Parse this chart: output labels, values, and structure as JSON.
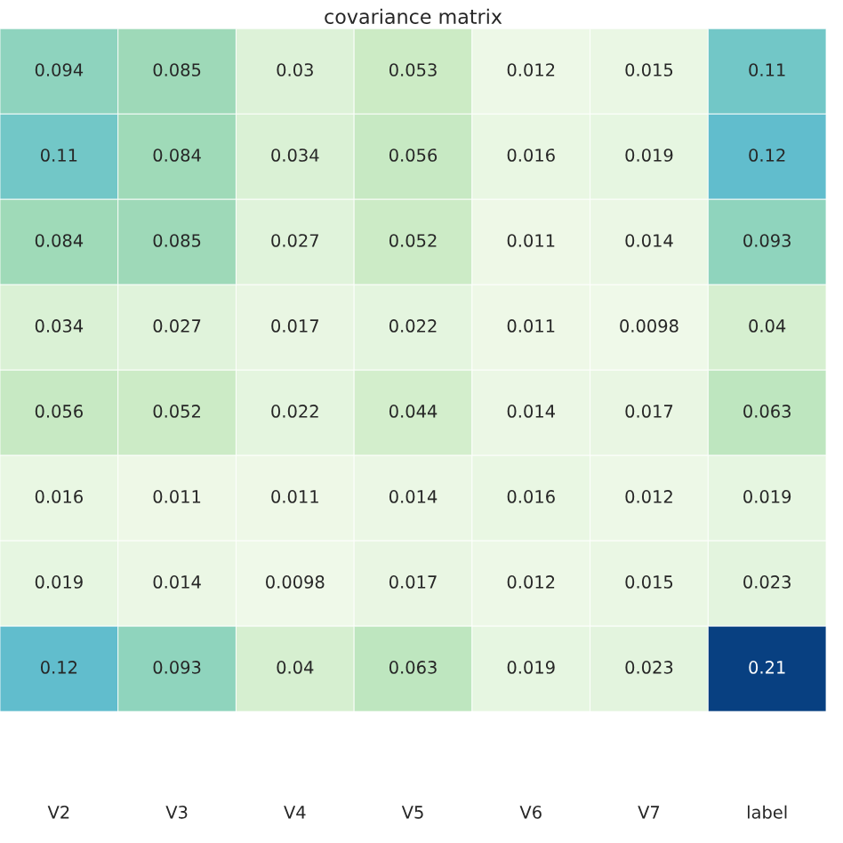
{
  "chart_data": {
    "type": "heatmap",
    "title": "covariance matrix",
    "categories": [
      "V2",
      "V3",
      "V4",
      "V5",
      "V6",
      "V7",
      "label"
    ],
    "y_categories": [
      null,
      null,
      null,
      null,
      null,
      null,
      null,
      null
    ],
    "cells": [
      [
        0.094,
        0.085,
        0.03,
        0.053,
        0.012,
        0.015,
        0.11
      ],
      [
        0.11,
        0.084,
        0.034,
        0.056,
        0.016,
        0.019,
        0.12
      ],
      [
        0.084,
        0.085,
        0.027,
        0.052,
        0.011,
        0.014,
        0.093
      ],
      [
        0.034,
        0.027,
        0.017,
        0.022,
        0.011,
        0.0098,
        0.04
      ],
      [
        0.056,
        0.052,
        0.022,
        0.044,
        0.014,
        0.017,
        0.063
      ],
      [
        0.016,
        0.011,
        0.011,
        0.014,
        0.016,
        0.012,
        0.019
      ],
      [
        0.019,
        0.014,
        0.0098,
        0.017,
        0.012,
        0.015,
        0.023
      ],
      [
        0.12,
        0.093,
        0.04,
        0.063,
        0.019,
        0.023,
        0.21
      ]
    ],
    "data_labels": true
  }
}
